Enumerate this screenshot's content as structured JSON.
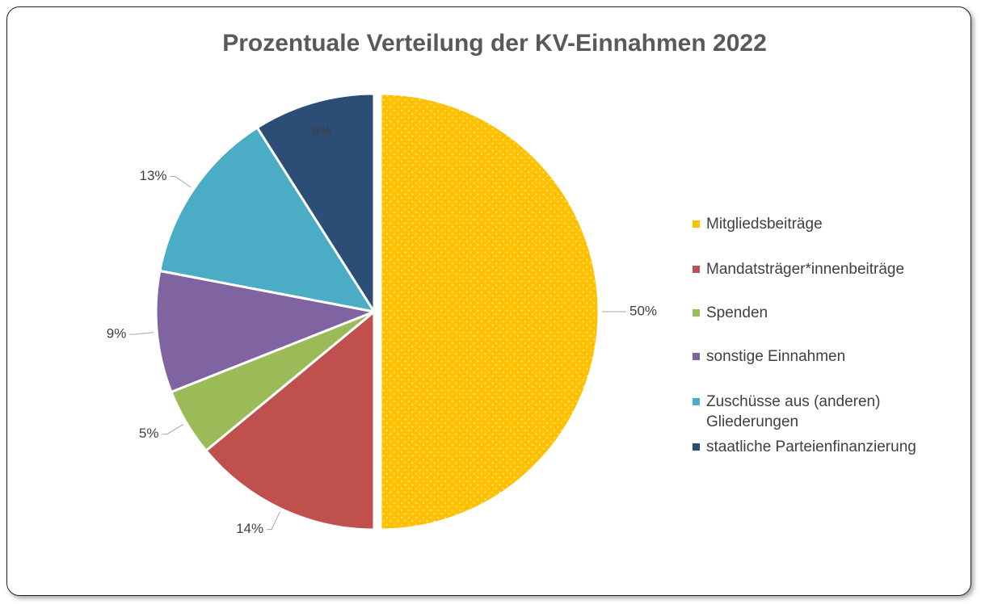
{
  "chart_data": {
    "type": "pie",
    "title": "Prozentuale Verteilung der KV-Einnahmen 2022",
    "categories": [
      "Mitgliedsbeiträge",
      "Mandatsträger*innenbeiträge",
      "Spenden",
      "sonstige Einnahmen",
      "Zuschüsse aus (anderen) Gliederungen",
      "staatliche Parteienfinanzierung"
    ],
    "values": [
      50,
      14,
      5,
      9,
      13,
      9
    ],
    "value_labels": [
      "50%",
      "14%",
      "5%",
      "9%",
      "13%",
      "9%"
    ],
    "colors": [
      "#FFC000",
      "#C0504D",
      "#9BBB59",
      "#8064A2",
      "#4BACC6",
      "#2C4D75"
    ],
    "legend": "right"
  }
}
